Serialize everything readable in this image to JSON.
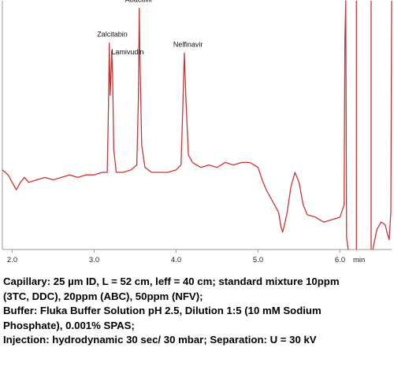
{
  "chart_data": {
    "type": "line",
    "title": "",
    "xlabel": "min",
    "ylabel": "",
    "xlim": [
      1.88,
      6.63
    ],
    "ylim": [
      0,
      100
    ],
    "grid": false,
    "series_color": "#cc3333",
    "x_ticks": [
      {
        "value": 2.0,
        "label": "2.0"
      },
      {
        "value": 3.0,
        "label": "3.0"
      },
      {
        "value": 4.0,
        "label": "4.0"
      },
      {
        "value": 5.0,
        "label": "5.0"
      },
      {
        "value": 6.0,
        "label": "6.0"
      }
    ],
    "peaks": [
      {
        "name": "Zalcitabin",
        "x": 3.18,
        "y": 83
      },
      {
        "name": "Lamivudin",
        "x": 3.22,
        "y": 80
      },
      {
        "name": "Abacavir",
        "x": 3.55,
        "y": 97
      },
      {
        "name": "Nelfinavir",
        "x": 4.1,
        "y": 79
      }
    ],
    "series": [
      {
        "points": [
          [
            1.88,
            32
          ],
          [
            1.95,
            30
          ],
          [
            2.0,
            27
          ],
          [
            2.05,
            24
          ],
          [
            2.1,
            27
          ],
          [
            2.15,
            29
          ],
          [
            2.2,
            27
          ],
          [
            2.3,
            28
          ],
          [
            2.4,
            29
          ],
          [
            2.5,
            28
          ],
          [
            2.6,
            29
          ],
          [
            2.7,
            30
          ],
          [
            2.8,
            29
          ],
          [
            2.9,
            30
          ],
          [
            3.0,
            30
          ],
          [
            3.1,
            31
          ],
          [
            3.16,
            31
          ],
          [
            3.175,
            58
          ],
          [
            3.185,
            83
          ],
          [
            3.195,
            62
          ],
          [
            3.205,
            70
          ],
          [
            3.215,
            80
          ],
          [
            3.225,
            70
          ],
          [
            3.24,
            40
          ],
          [
            3.27,
            31
          ],
          [
            3.35,
            31
          ],
          [
            3.45,
            32
          ],
          [
            3.52,
            34
          ],
          [
            3.54,
            60
          ],
          [
            3.55,
            97
          ],
          [
            3.56,
            75
          ],
          [
            3.58,
            42
          ],
          [
            3.62,
            33
          ],
          [
            3.7,
            31
          ],
          [
            3.8,
            31
          ],
          [
            3.9,
            31
          ],
          [
            4.0,
            32
          ],
          [
            4.06,
            34
          ],
          [
            4.08,
            55
          ],
          [
            4.1,
            79
          ],
          [
            4.12,
            60
          ],
          [
            4.15,
            38
          ],
          [
            4.2,
            35
          ],
          [
            4.3,
            33
          ],
          [
            4.4,
            34
          ],
          [
            4.5,
            33
          ],
          [
            4.6,
            35
          ],
          [
            4.7,
            34
          ],
          [
            4.8,
            35
          ],
          [
            4.9,
            35
          ],
          [
            5.0,
            33
          ],
          [
            5.05,
            28
          ],
          [
            5.1,
            24
          ],
          [
            5.15,
            21
          ],
          [
            5.2,
            18
          ],
          [
            5.25,
            15
          ],
          [
            5.28,
            9
          ],
          [
            5.3,
            7
          ],
          [
            5.35,
            14
          ],
          [
            5.4,
            25
          ],
          [
            5.45,
            31
          ],
          [
            5.5,
            27
          ],
          [
            5.55,
            18
          ],
          [
            5.6,
            14
          ],
          [
            5.7,
            13
          ],
          [
            5.8,
            11
          ],
          [
            5.9,
            12
          ],
          [
            6.0,
            13
          ],
          [
            6.05,
            18
          ],
          [
            6.06,
            85
          ],
          [
            6.07,
            100
          ],
          [
            6.08,
            5
          ],
          [
            6.1,
            0
          ]
        ]
      },
      {
        "points": [
          [
            6.2,
            100
          ],
          [
            6.2,
            0
          ]
        ]
      },
      {
        "points": [
          [
            6.38,
            100
          ],
          [
            6.38,
            0
          ]
        ]
      },
      {
        "points": [
          [
            6.4,
            0
          ],
          [
            6.45,
            8
          ],
          [
            6.5,
            11
          ],
          [
            6.55,
            10
          ],
          [
            6.58,
            6
          ],
          [
            6.6,
            4
          ],
          [
            6.62,
            15
          ],
          [
            6.63,
            100
          ]
        ]
      }
    ]
  },
  "caption": {
    "lines": [
      "Capillary: 25 µm ID, L = 52 cm, leff = 40 cm; standard mixture 10ppm",
      "(3TC, DDC), 20ppm (ABC), 50ppm (NFV);",
      "Buffer: Fluka Buffer Solution pH 2.5, Dilution 1:5 (10 mM Sodium",
      "Phosphate), 0.001% SPAS;",
      "Injection: hydrodynamic 30 sec/ 30 mbar; Separation: U = 30 kV"
    ]
  }
}
